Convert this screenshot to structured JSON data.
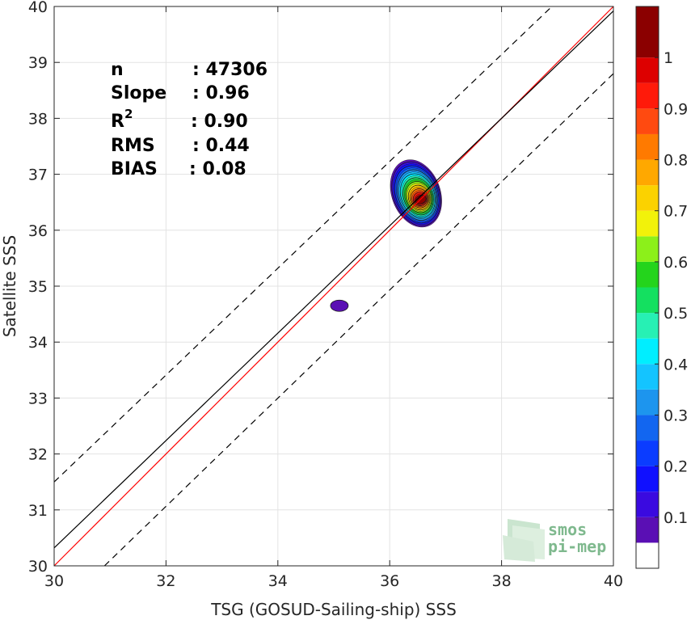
{
  "chart_data": {
    "type": "scatter",
    "subtype": "density-contour",
    "xlabel": "TSG (GOSUD-Sailing-ship) SSS",
    "ylabel": "Satellite SSS",
    "xlim": [
      30,
      40
    ],
    "ylim": [
      30,
      40
    ],
    "x_ticks": [
      "30",
      "32",
      "34",
      "36",
      "38",
      "40"
    ],
    "y_ticks": [
      "30",
      "31",
      "32",
      "33",
      "34",
      "35",
      "36",
      "37",
      "38",
      "39",
      "40"
    ],
    "grid": true,
    "stats": [
      {
        "label": "n",
        "value": ": 47306"
      },
      {
        "label": "Slope",
        "value": ": 0.96"
      },
      {
        "label": "R",
        "sup": "2",
        "value": ": 0.90"
      },
      {
        "label": "RMS",
        "value": ": 0.44"
      },
      {
        "label": "BIAS",
        "value": ": 0.08"
      }
    ],
    "lines": [
      {
        "kind": "one-to-one",
        "color": "#ff0000",
        "style": "solid",
        "points": [
          [
            30,
            30
          ],
          [
            40,
            40
          ]
        ]
      },
      {
        "kind": "regression",
        "color": "#000000",
        "style": "solid",
        "points": [
          [
            30,
            30.32
          ],
          [
            40,
            39.92
          ]
        ]
      },
      {
        "kind": "upper-bound",
        "color": "#000000",
        "style": "dashed",
        "points": [
          [
            30,
            31.5
          ],
          [
            38.9,
            40
          ]
        ]
      },
      {
        "kind": "lower-bound",
        "color": "#000000",
        "style": "dashed",
        "points": [
          [
            30.9,
            30
          ],
          [
            40,
            38.8
          ]
        ]
      }
    ],
    "density_peaks": [
      {
        "x": 36.5,
        "y": 36.6,
        "max_level": 1.0
      },
      {
        "x": 35.1,
        "y": 34.65,
        "max_level": 0.05
      }
    ],
    "colorbar": {
      "ticks": [
        "0.1",
        "0.2",
        "0.3",
        "0.4",
        "0.5",
        "0.6",
        "0.7",
        "0.8",
        "0.9",
        "1"
      ],
      "levels": [
        0.05,
        0.1,
        0.15,
        0.2,
        0.25,
        0.3,
        0.35,
        0.4,
        0.45,
        0.5,
        0.55,
        0.6,
        0.65,
        0.7,
        0.75,
        0.8,
        0.85,
        0.9,
        0.95,
        1.0
      ],
      "colors": [
        "#ffffff",
        "#5a0fb4",
        "#3a0ae0",
        "#1010ff",
        "#0b3cff",
        "#1266f0",
        "#1d95ee",
        "#14c4ff",
        "#00eeff",
        "#27f0b4",
        "#14e060",
        "#24d41c",
        "#8cf01a",
        "#f2f20a",
        "#fbd200",
        "#ffa800",
        "#ff7a00",
        "#ff4a10",
        "#ff1a0a",
        "#dd0000",
        "#8b0000"
      ]
    }
  },
  "logo": {
    "line1": "smos",
    "line2": "pi-mep"
  }
}
